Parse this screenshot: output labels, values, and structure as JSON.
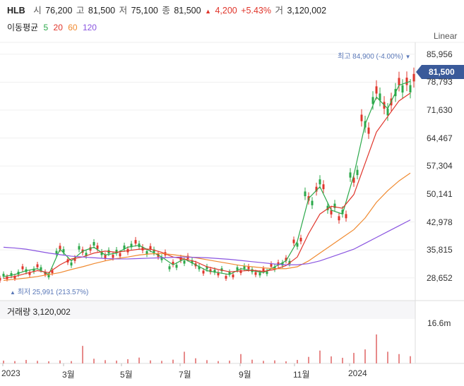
{
  "header": {
    "ticker": "HLB",
    "open_label": "시",
    "open": "76,200",
    "high_label": "고",
    "high": "81,500",
    "low_label": "저",
    "low": "75,100",
    "close_label": "종",
    "close": "81,500",
    "change_arrow": "▲",
    "change": "4,200",
    "change_pct": "+5.43%",
    "volume_label": "거",
    "volume": "3,120,002"
  },
  "ma_legend": {
    "title": "이동평균",
    "periods": [
      "5",
      "20",
      "60",
      "120"
    ],
    "colors": [
      "#2ba84a",
      "#e0352b",
      "#f08a30",
      "#8a55e0"
    ]
  },
  "scale_mode": "Linear",
  "current_price_tag": "81,500",
  "high_marker": "최고 84,900 (-4.00%)",
  "high_marker_arrow": "▼",
  "low_marker": "최저 25,991 (213.57%)",
  "low_marker_arrow": "▲",
  "volume_panel": {
    "label": "거래량",
    "value": "3,120,002",
    "axis_tick": "16.6m"
  },
  "colors": {
    "up": "#e0352b",
    "down": "#2b6cd6",
    "candle_up": "#e0352b",
    "candle_down": "#2ba84a",
    "tag": "#3a5a9a",
    "volume": "#e78a8a"
  },
  "chart_data": {
    "type": "line",
    "title": "",
    "y_axis_ticks": [
      "85,956",
      "78,793",
      "71,630",
      "64,467",
      "57,304",
      "50,141",
      "42,978",
      "35,815",
      "28,652"
    ],
    "y_tick_values": [
      85956,
      78793,
      71630,
      64467,
      57304,
      50141,
      42978,
      35815,
      28652
    ],
    "x_axis_ticks": [
      "2023",
      "3월",
      "5월",
      "7월",
      "9월",
      "11월",
      "2024"
    ],
    "ylim": [
      23000,
      89000
    ],
    "grid": true,
    "series": [
      {
        "name": "5",
        "values": [
          29000,
          29500,
          30500,
          31000,
          29500,
          36000,
          33000,
          35500,
          36500,
          34500,
          35000,
          36500,
          37000,
          35500,
          34000,
          32000,
          33500,
          32000,
          30500,
          30000,
          29500,
          31000,
          30500,
          30000,
          31500,
          33000,
          38000,
          49000,
          52000,
          46000,
          45000,
          55000,
          68000,
          75000,
          72000,
          78000,
          79000
        ]
      },
      {
        "name": "20",
        "values": [
          28500,
          29000,
          29800,
          30500,
          30000,
          32000,
          33500,
          34000,
          35000,
          35500,
          35200,
          35600,
          36000,
          36000,
          35200,
          34000,
          33500,
          32800,
          31500,
          30800,
          30200,
          30400,
          30600,
          30300,
          30800,
          31800,
          34000,
          40000,
          45000,
          47000,
          46500,
          50000,
          58000,
          66000,
          70000,
          74000,
          76000
        ]
      },
      {
        "name": "60",
        "values": [
          28000,
          28300,
          28600,
          29000,
          29500,
          30000,
          30800,
          31500,
          32300,
          33000,
          33600,
          34000,
          34500,
          34800,
          34900,
          34600,
          34200,
          33800,
          33300,
          32800,
          32300,
          31800,
          31500,
          31200,
          31000,
          31000,
          31500,
          33000,
          35000,
          37000,
          39000,
          41000,
          44000,
          48000,
          51000,
          53500,
          55500
        ]
      },
      {
        "name": "120",
        "values": [
          36500,
          36300,
          36000,
          35500,
          35000,
          34600,
          34200,
          34000,
          33800,
          33600,
          33500,
          33500,
          33600,
          33700,
          33800,
          33900,
          34000,
          33900,
          33800,
          33600,
          33400,
          33100,
          32800,
          32500,
          32200,
          32000,
          32000,
          32300,
          33000,
          34000,
          35000,
          36000,
          37500,
          39000,
          40500,
          42000,
          43500
        ]
      }
    ],
    "highlights": {
      "high": 84900,
      "low": 25991,
      "last_close": 81500
    },
    "volume": {
      "axis_tick": "16.6m",
      "values": [
        1.2,
        1.0,
        1.5,
        1.1,
        0.9,
        1.3,
        1.0,
        7.5,
        2.0,
        1.4,
        1.2,
        1.8,
        2.5,
        1.3,
        1.1,
        1.6,
        5.0,
        2.2,
        1.4,
        1.0,
        1.2,
        4.0,
        1.6,
        1.1,
        1.3,
        0.9,
        1.5,
        2.8,
        5.5,
        3.0,
        2.4,
        4.5,
        6.0,
        12.4,
        5.0,
        4.0,
        3.1
      ]
    }
  }
}
